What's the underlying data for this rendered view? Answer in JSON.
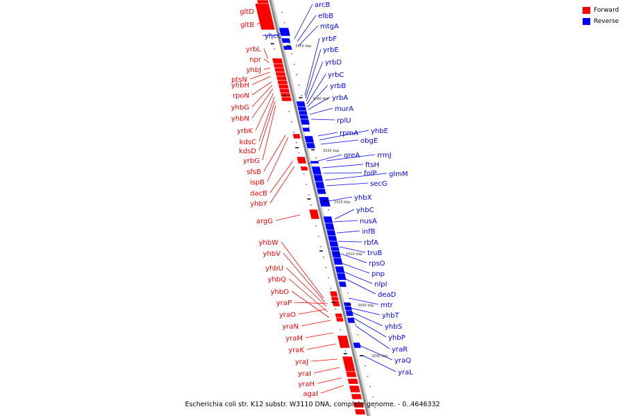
{
  "caption": "Escherichia coli str. K12 substr. W3110 DNA, complete genome. - 0..4646332",
  "legend": [
    {
      "label": "Forward",
      "color": "#ff0000"
    },
    {
      "label": "Reverse",
      "color": "#0000ff"
    }
  ],
  "colors": {
    "forward": "#ff0000",
    "reverse": "#0000ff",
    "backbone": "#888888"
  },
  "ticks": [
    "3350 kbp",
    "3340 kbp",
    "3330 kbp",
    "3320 kbp",
    "3310 kbp",
    "3300 kbp",
    "3290 kbp"
  ],
  "forward_genes": [
    "gltD",
    "gltB",
    "yrbL",
    "npr",
    "yhbJ",
    "ptsN",
    "yhbH",
    "rpoN",
    "yhbG",
    "yhbN",
    "yrbK",
    "kdsC",
    "kdsD",
    "yrbG",
    "sfsB",
    "ispB",
    "dacB",
    "yhbY",
    "argG",
    "yhbW",
    "yhbV",
    "yhbU",
    "yhbQ",
    "yhbO",
    "yraP",
    "yraO",
    "yraN",
    "yraM",
    "yraK",
    "yraJ",
    "yraI",
    "yraH",
    "agaI"
  ],
  "reverse_genes": [
    "arcB",
    "elbB",
    "mtgA",
    "yhcC",
    "yrbF",
    "yrbE",
    "yrbD",
    "yrbC",
    "yrbB",
    "yrbA",
    "murA",
    "rplU",
    "rpmA",
    "yhbE",
    "obgE",
    "greA",
    "rrmJ",
    "ftsH",
    "folP",
    "glmM",
    "secG",
    "yhbX",
    "yhbC",
    "nusA",
    "infB",
    "rbfA",
    "truB",
    "rpsO",
    "pnp",
    "nlpI",
    "deaD",
    "mtr",
    "yhbT",
    "yhbS",
    "yhbP",
    "yraR",
    "yraQ",
    "yraL"
  ]
}
